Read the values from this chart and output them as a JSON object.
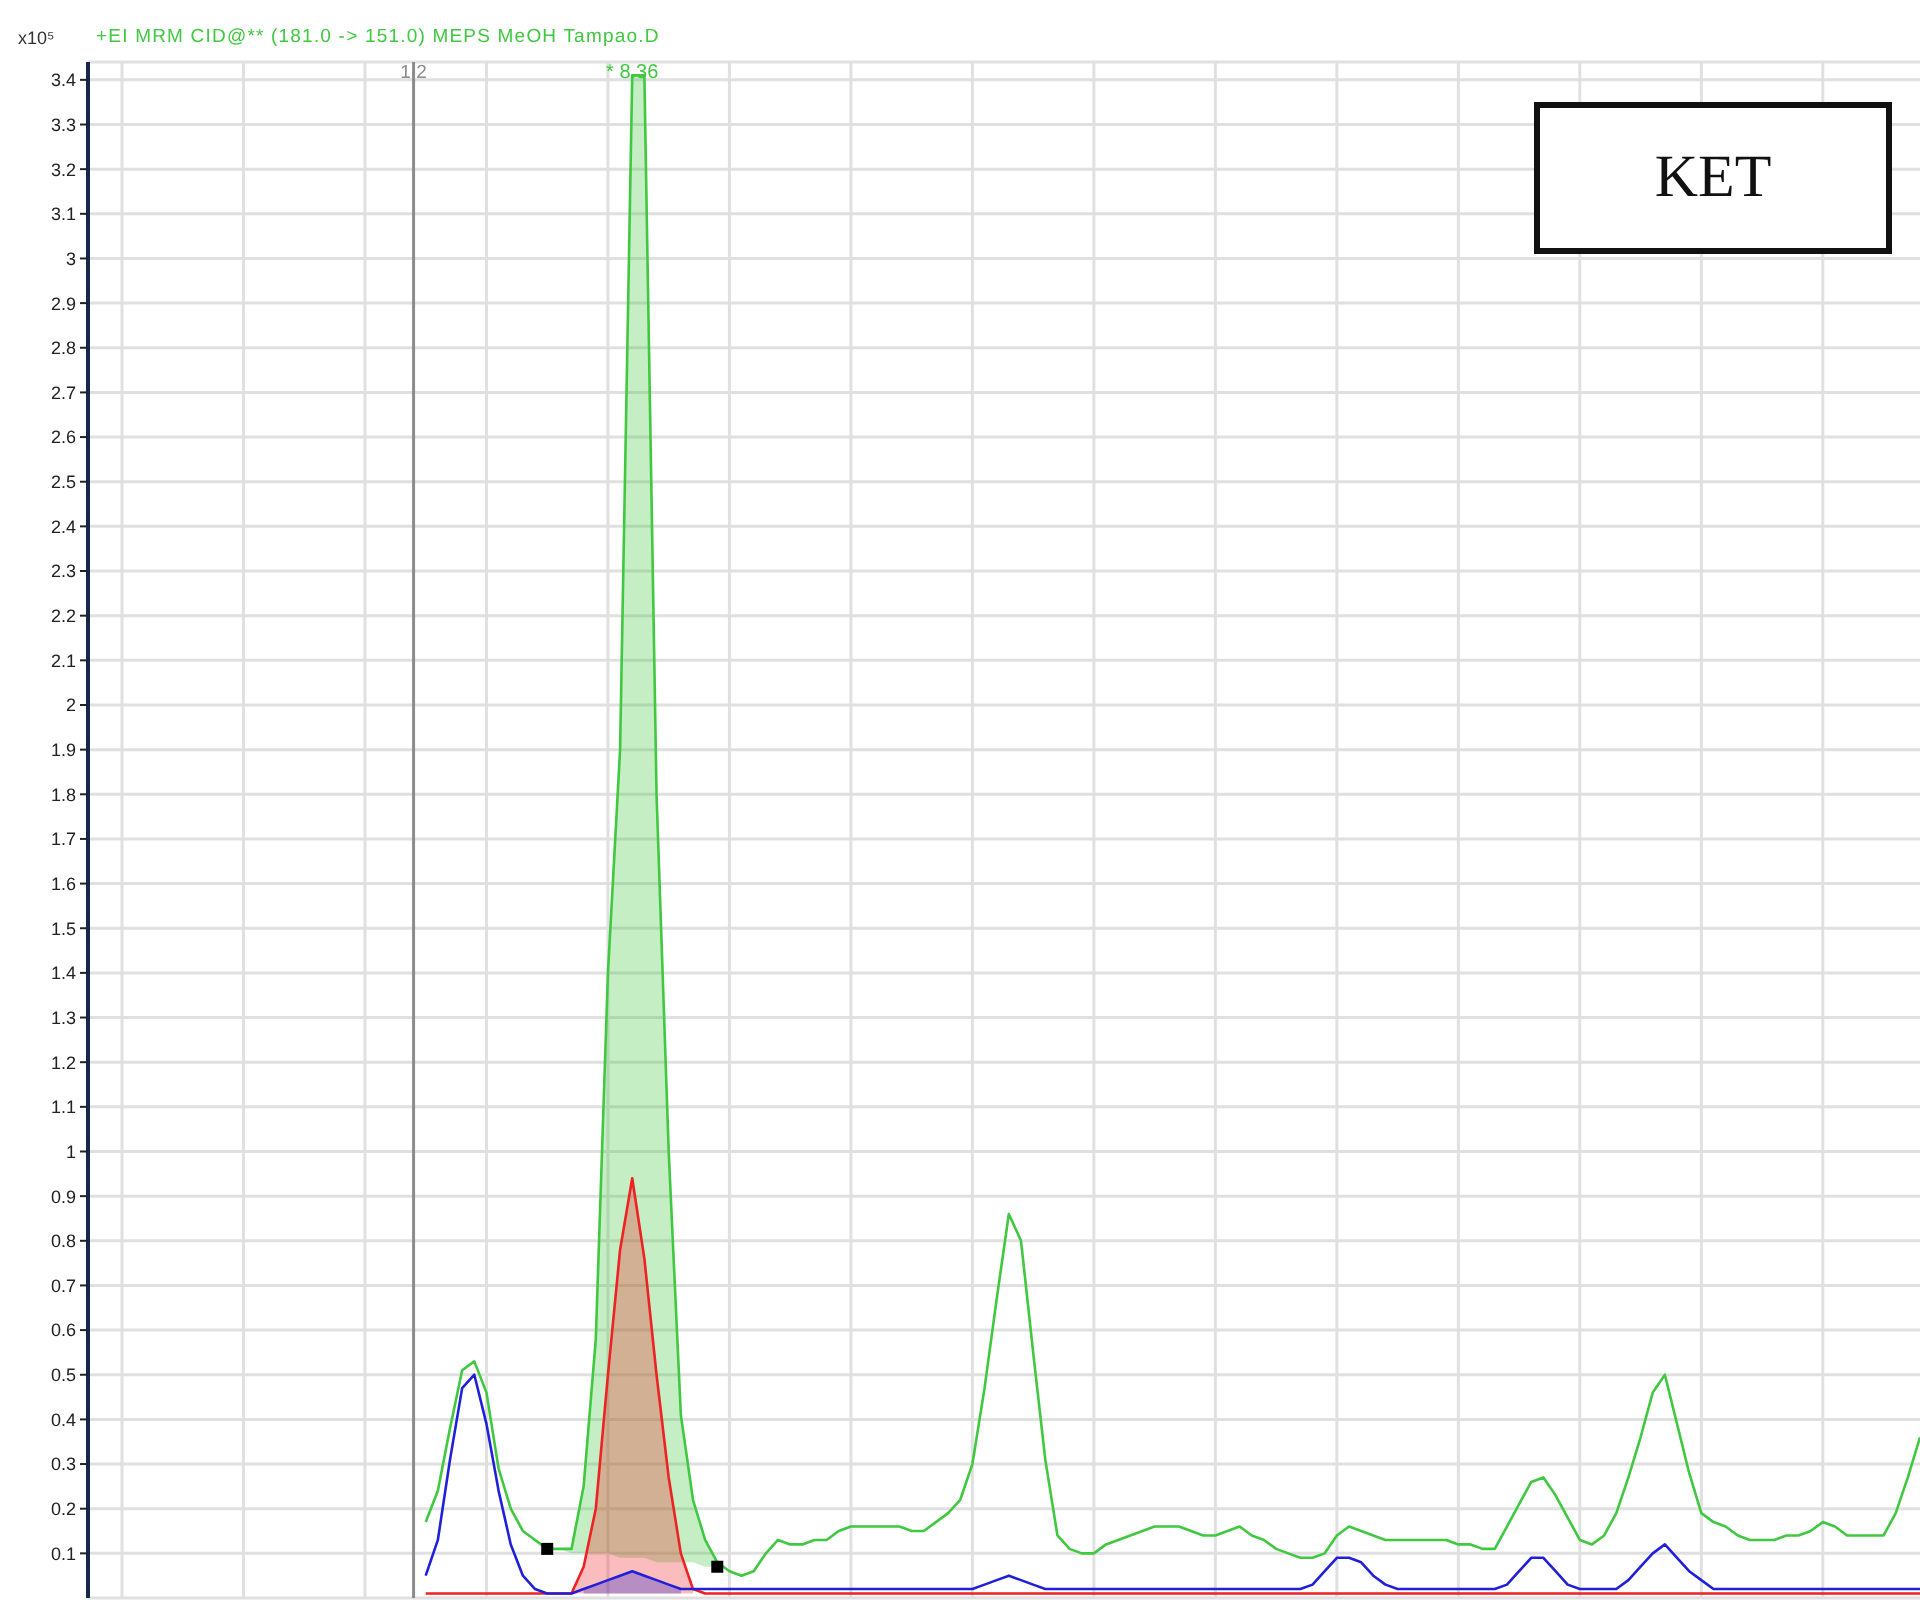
{
  "chart_data": {
    "type": "line",
    "title": "+EI MRM CID@** (181.0 -> 151.0) MEPS MeOH Tampao.D",
    "ylabel": "x10⁵",
    "categories": [
      null,
      null,
      null,
      null,
      null,
      null,
      null,
      null,
      null,
      null,
      null,
      null,
      null,
      null,
      null,
      null,
      null,
      null,
      null,
      null,
      null,
      null,
      null,
      null,
      null,
      null,
      null,
      null,
      null,
      null,
      null,
      null,
      null,
      null,
      null,
      null,
      null,
      null,
      null,
      null,
      null,
      null,
      null,
      null,
      null,
      null,
      null,
      null,
      null,
      null,
      null,
      null,
      null,
      null,
      null,
      null,
      null,
      null,
      null,
      null,
      null,
      null,
      null,
      null,
      null,
      null,
      null,
      null,
      null,
      null,
      null,
      null,
      null,
      null,
      null,
      null,
      null,
      null,
      null,
      null,
      null,
      null,
      null,
      null,
      null,
      null,
      null,
      null,
      null,
      null,
      null,
      null,
      null,
      null,
      null,
      null,
      null,
      null,
      null,
      null,
      null,
      null,
      null,
      null,
      null,
      null,
      null,
      null,
      null,
      null,
      null,
      null,
      null,
      null,
      null,
      null,
      null,
      null,
      null,
      null,
      null,
      null,
      null,
      null,
      null,
      null,
      null,
      null,
      null,
      null,
      null,
      null,
      null,
      null,
      null,
      null,
      null,
      null,
      null,
      null,
      null,
      null,
      null,
      null,
      null,
      null,
      null,
      null,
      null
    ],
    "series": [
      {
        "color": "#40c840",
        "values": [
          null,
          null,
          null,
          null,
          null,
          null,
          null,
          null,
          null,
          null,
          null,
          null,
          null,
          null,
          null,
          null,
          null,
          null,
          null,
          null,
          null,
          null,
          null,
          null,
          null,
          0.17,
          0.24,
          0.38,
          0.51,
          0.53,
          0.46,
          0.29,
          0.2,
          0.15,
          0.13,
          0.11,
          0.11,
          0.11,
          0.25,
          0.58,
          1.4,
          1.9,
          3.41,
          3.41,
          1.8,
          1,
          0.41,
          0.22,
          0.13,
          0.08,
          0.06,
          0.05,
          0.06,
          0.1,
          0.13,
          0.12,
          0.12,
          0.13,
          0.13,
          0.15,
          0.16,
          0.16,
          0.16,
          0.16,
          0.16,
          0.15,
          0.15,
          0.17,
          0.19,
          0.22,
          0.3,
          0.47,
          0.67,
          0.86,
          0.8,
          0.55,
          0.31,
          0.14,
          0.11,
          0.1,
          0.1,
          0.12,
          0.13,
          0.14,
          0.15,
          0.16,
          0.16,
          0.16,
          0.15,
          0.14,
          0.14,
          0.15,
          0.16,
          0.14,
          0.13,
          0.11,
          0.1,
          0.09,
          0.09,
          0.1,
          0.14,
          0.16,
          0.15,
          0.14,
          0.13,
          0.13,
          0.13,
          0.13,
          0.13,
          0.13,
          0.12,
          0.12,
          0.11,
          0.11,
          0.16,
          0.21,
          0.26,
          0.27,
          0.23,
          0.18,
          0.13,
          0.12,
          0.14,
          0.19,
          0.27,
          0.36,
          0.46,
          0.5,
          0.39,
          0.28,
          0.19,
          0.17,
          0.16,
          0.14,
          0.13,
          0.13,
          0.13,
          0.14,
          0.14,
          0.15,
          0.17,
          0.16,
          0.14,
          0.14,
          0.14,
          0.14,
          0.19,
          0.27,
          0.36
        ],
        "lower": [
          null,
          null,
          null,
          null,
          null,
          null,
          null,
          null,
          null,
          null,
          null,
          null,
          null,
          null,
          null,
          null,
          null,
          null,
          null,
          null,
          null,
          null,
          null,
          null,
          null,
          null,
          null,
          null,
          null,
          null,
          null,
          null,
          null,
          null,
          null,
          0.11,
          0.11,
          0.1,
          0.1,
          0.1,
          0.1,
          0.09,
          0.09,
          0.09,
          0.08,
          0.08,
          0.08,
          0.08,
          0.07,
          0.07,
          null,
          null,
          null,
          null,
          null,
          null,
          null,
          null,
          null,
          null,
          null,
          null,
          null,
          null,
          null,
          null,
          null,
          null,
          null,
          null,
          null,
          null,
          null,
          null,
          null,
          null,
          null,
          null,
          null,
          null,
          null,
          null,
          null,
          null,
          null,
          null,
          null,
          null,
          null,
          null,
          null,
          null,
          null,
          null,
          null,
          null,
          null,
          null,
          null,
          null,
          null,
          null,
          null,
          null,
          null,
          null,
          null,
          null,
          null,
          null,
          null,
          null,
          null,
          null,
          null,
          null,
          null,
          null,
          null,
          null,
          null,
          null,
          null,
          null,
          null,
          null,
          null,
          null,
          null,
          null,
          null,
          null,
          null,
          null,
          null,
          null,
          null,
          null,
          null,
          null,
          null,
          null,
          null,
          null,
          null,
          null,
          null,
          null,
          null
        ],
        "upper": [
          null,
          null,
          null,
          null,
          null,
          null,
          null,
          null,
          null,
          null,
          null,
          null,
          null,
          null,
          null,
          null,
          null,
          null,
          null,
          null,
          null,
          null,
          null,
          null,
          null,
          null,
          null,
          null,
          null,
          null,
          null,
          null,
          null,
          null,
          null,
          0.11,
          0.11,
          0.11,
          0.25,
          0.58,
          1.4,
          1.9,
          3.41,
          3.41,
          1.8,
          1,
          0.41,
          0.22,
          0.13,
          0.08,
          null,
          null,
          null,
          null,
          null,
          null,
          null,
          null,
          null,
          null,
          null,
          null,
          null,
          null,
          null,
          null,
          null,
          null,
          null,
          null,
          null,
          null,
          null,
          null,
          null,
          null,
          null,
          null,
          null,
          null,
          null,
          null,
          null,
          null,
          null,
          null,
          null,
          null,
          null,
          null,
          null,
          null,
          null,
          null,
          null,
          null,
          null,
          null,
          null,
          null,
          null,
          null,
          null,
          null,
          null,
          null,
          null,
          null,
          null,
          null,
          null,
          null,
          null,
          null,
          null,
          null,
          null,
          null,
          null,
          null,
          null,
          null,
          null,
          null,
          null,
          null,
          null,
          null,
          null,
          null,
          null,
          null,
          null,
          null,
          null,
          null,
          null,
          null,
          null,
          null,
          null,
          null,
          null,
          null,
          null,
          null,
          null,
          null,
          null
        ]
      },
      {
        "color": "#ee2222",
        "values": [
          null,
          null,
          null,
          null,
          null,
          null,
          null,
          null,
          null,
          null,
          null,
          null,
          null,
          null,
          null,
          null,
          null,
          null,
          null,
          null,
          null,
          null,
          null,
          null,
          null,
          0.01,
          0.01,
          0.01,
          0.01,
          0.01,
          0.01,
          0.01,
          0.01,
          0.01,
          0.01,
          0.01,
          0.01,
          0.01,
          0.07,
          0.2,
          0.5,
          0.78,
          0.94,
          0.76,
          0.5,
          0.27,
          0.1,
          0.02,
          0.01,
          0.01,
          0.01,
          0.01,
          0.01,
          0.01,
          0.01,
          0.01,
          0.01,
          0.01,
          0.01,
          0.01,
          0.01,
          0.01,
          0.01,
          0.01,
          0.01,
          0.01,
          0.01,
          0.01,
          0.01,
          0.01,
          0.01,
          0.01,
          0.01,
          0.01,
          0.01,
          0.01,
          0.01,
          0.01,
          0.01,
          0.01,
          0.01,
          0.01,
          0.01,
          0.01,
          0.01,
          0.01,
          0.01,
          0.01,
          0.01,
          0.01,
          0.01,
          0.01,
          0.01,
          0.01,
          0.01,
          0.01,
          0.01,
          0.01,
          0.01,
          0.01,
          0.01,
          0.01,
          0.01,
          0.01,
          0.01,
          0.01,
          0.01,
          0.01,
          0.01,
          0.01,
          0.01,
          0.01,
          0.01,
          0.01,
          0.01,
          0.01,
          0.01,
          0.01,
          0.01,
          0.01,
          0.01,
          0.01,
          0.01,
          0.01,
          0.01,
          0.01,
          0.01,
          0.01,
          0.01,
          0.01,
          0.01,
          0.01,
          0.01,
          0.01,
          0.01,
          0.01,
          0.01,
          0.01,
          0.01,
          0.01,
          0.01,
          0.01,
          0.01,
          0.01,
          0.01,
          0.01,
          0.01,
          0.01,
          0.01
        ],
        "lower": [
          null,
          null,
          null,
          null,
          null,
          null,
          null,
          null,
          null,
          null,
          null,
          null,
          null,
          null,
          null,
          null,
          null,
          null,
          null,
          null,
          null,
          null,
          null,
          null,
          null,
          null,
          null,
          null,
          null,
          null,
          null,
          null,
          null,
          null,
          null,
          null,
          null,
          0.01,
          0.01,
          0.01,
          0.01,
          0.01,
          0.01,
          0.01,
          0.01,
          0.01,
          0.01,
          0.01,
          null,
          null,
          null,
          null,
          null,
          null,
          null,
          null,
          null,
          null,
          null,
          null,
          null,
          null,
          null,
          null,
          null,
          null,
          null,
          null,
          null,
          null,
          null,
          null,
          null,
          null,
          null,
          null,
          null,
          null,
          null,
          null,
          null,
          null,
          null,
          null,
          null,
          null,
          null,
          null,
          null,
          null,
          null,
          null,
          null,
          null,
          null,
          null,
          null,
          null,
          null,
          null,
          null,
          null,
          null,
          null,
          null,
          null,
          null,
          null,
          null,
          null,
          null,
          null,
          null,
          null,
          null,
          null,
          null,
          null,
          null,
          null,
          null,
          null,
          null,
          null,
          null,
          null,
          null,
          null,
          null,
          null,
          null,
          null,
          null,
          null,
          null,
          null,
          null,
          null,
          null,
          null,
          null,
          null,
          null,
          null,
          null,
          null,
          null,
          null,
          null
        ],
        "upper": [
          null,
          null,
          null,
          null,
          null,
          null,
          null,
          null,
          null,
          null,
          null,
          null,
          null,
          null,
          null,
          null,
          null,
          null,
          null,
          null,
          null,
          null,
          null,
          null,
          null,
          null,
          null,
          null,
          null,
          null,
          null,
          null,
          null,
          null,
          null,
          null,
          null,
          0.01,
          0.07,
          0.2,
          0.5,
          0.78,
          0.94,
          0.76,
          0.5,
          0.27,
          0.1,
          0.02,
          null,
          null,
          null,
          null,
          null,
          null,
          null,
          null,
          null,
          null,
          null,
          null,
          null,
          null,
          null,
          null,
          null,
          null,
          null,
          null,
          null,
          null,
          null,
          null,
          null,
          null,
          null,
          null,
          null,
          null,
          null,
          null,
          null,
          null,
          null,
          null,
          null,
          null,
          null,
          null,
          null,
          null,
          null,
          null,
          null,
          null,
          null,
          null,
          null,
          null,
          null,
          null,
          null,
          null,
          null,
          null,
          null,
          null,
          null,
          null,
          null,
          null,
          null,
          null,
          null,
          null,
          null,
          null,
          null,
          null,
          null,
          null,
          null,
          null,
          null,
          null,
          null,
          null,
          null,
          null,
          null,
          null,
          null,
          null,
          null,
          null,
          null,
          null,
          null,
          null,
          null,
          null,
          null,
          null,
          null,
          null,
          null,
          null,
          null,
          null,
          null
        ]
      },
      {
        "color": "#2020d8",
        "values": [
          null,
          null,
          null,
          null,
          null,
          null,
          null,
          null,
          null,
          null,
          null,
          null,
          null,
          null,
          null,
          null,
          null,
          null,
          null,
          null,
          null,
          null,
          null,
          null,
          null,
          0.05,
          0.13,
          0.31,
          0.47,
          0.5,
          0.39,
          0.24,
          0.12,
          0.05,
          0.02,
          0.01,
          0.01,
          0.01,
          0.02,
          0.03,
          0.04,
          0.05,
          0.06,
          0.05,
          0.04,
          0.03,
          0.02,
          0.02,
          0.02,
          0.02,
          0.02,
          0.02,
          0.02,
          0.02,
          0.02,
          0.02,
          0.02,
          0.02,
          0.02,
          0.02,
          0.02,
          0.02,
          0.02,
          0.02,
          0.02,
          0.02,
          0.02,
          0.02,
          0.02,
          0.02,
          0.02,
          0.03,
          0.04,
          0.05,
          0.04,
          0.03,
          0.02,
          0.02,
          0.02,
          0.02,
          0.02,
          0.02,
          0.02,
          0.02,
          0.02,
          0.02,
          0.02,
          0.02,
          0.02,
          0.02,
          0.02,
          0.02,
          0.02,
          0.02,
          0.02,
          0.02,
          0.02,
          0.02,
          0.03,
          0.06,
          0.09,
          0.09,
          0.08,
          0.05,
          0.03,
          0.02,
          0.02,
          0.02,
          0.02,
          0.02,
          0.02,
          0.02,
          0.02,
          0.02,
          0.03,
          0.06,
          0.09,
          0.09,
          0.06,
          0.03,
          0.02,
          0.02,
          0.02,
          0.02,
          0.04,
          0.07,
          0.1,
          0.12,
          0.09,
          0.06,
          0.04,
          0.02,
          0.02,
          0.02,
          0.02,
          0.02,
          0.02,
          0.02,
          0.02,
          0.02,
          0.02,
          0.02,
          0.02,
          0.02,
          0.02,
          0.02,
          0.02,
          0.02,
          0.02
        ],
        "lower": [
          null,
          null,
          null,
          null,
          null,
          null,
          null,
          null,
          null,
          null,
          null,
          null,
          null,
          null,
          null,
          null,
          null,
          null,
          null,
          null,
          null,
          null,
          null,
          null,
          null,
          null,
          null,
          null,
          null,
          null,
          null,
          null,
          null,
          null,
          null,
          null,
          null,
          null,
          0.01,
          0.01,
          0.01,
          0.01,
          0.01,
          0.01,
          0.01,
          0.01,
          0.01,
          null,
          null,
          null,
          null,
          null,
          null,
          null,
          null,
          null,
          null,
          null,
          null,
          null,
          null,
          null,
          null,
          null,
          null,
          null,
          null,
          null,
          null,
          null,
          null,
          null,
          null,
          null,
          null,
          null,
          null,
          null,
          null,
          null,
          null,
          null,
          null,
          null,
          null,
          null,
          null,
          null,
          null,
          null,
          null,
          null,
          null,
          null,
          null,
          null,
          null,
          null,
          null,
          null,
          null,
          null,
          null,
          null,
          null,
          null,
          null,
          null,
          null,
          null,
          null,
          null,
          null,
          null,
          null,
          null,
          null,
          null,
          null,
          null,
          null,
          null,
          null,
          null,
          null,
          null,
          null,
          null,
          null,
          null,
          null,
          null,
          null,
          null,
          null,
          null,
          null,
          null,
          null,
          null,
          null,
          null,
          null,
          null,
          null,
          null,
          null,
          null,
          null
        ],
        "upper": [
          null,
          null,
          null,
          null,
          null,
          null,
          null,
          null,
          null,
          null,
          null,
          null,
          null,
          null,
          null,
          null,
          null,
          null,
          null,
          null,
          null,
          null,
          null,
          null,
          null,
          null,
          null,
          null,
          null,
          null,
          null,
          null,
          null,
          null,
          null,
          null,
          null,
          null,
          0.02,
          0.03,
          0.04,
          0.05,
          0.06,
          0.05,
          0.04,
          0.03,
          0.02,
          null,
          null,
          null,
          null,
          null,
          null,
          null,
          null,
          null,
          null,
          null,
          null,
          null,
          null,
          null,
          null,
          null,
          null,
          null,
          null,
          null,
          null,
          null,
          null,
          null,
          null,
          null,
          null,
          null,
          null,
          null,
          null,
          null,
          null,
          null,
          null,
          null,
          null,
          null,
          null,
          null,
          null,
          null,
          null,
          null,
          null,
          null,
          null,
          null,
          null,
          null,
          null,
          null,
          null,
          null,
          null,
          null,
          null,
          null,
          null,
          null,
          null,
          null,
          null,
          null,
          null,
          null,
          null,
          null,
          null,
          null,
          null,
          null,
          null,
          null,
          null,
          null,
          null,
          null,
          null,
          null,
          null,
          null,
          null,
          null,
          null,
          null,
          null,
          null,
          null,
          null,
          null,
          null,
          null,
          null,
          null,
          null,
          null,
          null,
          null,
          null,
          null
        ]
      }
    ],
    "ylim": [
      0,
      3.44
    ],
    "yticks": [
      0.1,
      0.2,
      0.3,
      0.4,
      0.5,
      0.6,
      0.7,
      0.8,
      0.9,
      1,
      1.1,
      1.2,
      1.3,
      1.4,
      1.5,
      1.6,
      1.7,
      1.8,
      1.9,
      2,
      2.1,
      2.2,
      2.3,
      2.4,
      2.5,
      2.6,
      2.7,
      2.8,
      2.9,
      3,
      3.1,
      3.2,
      3.3,
      3.4
    ],
    "grid": true,
    "tick_labels": "y",
    "marker": "none",
    "annotations": [
      {
        "text": "* 8.36",
        "y": 3.41
      },
      "1 2",
      "KET"
    ]
  }
}
